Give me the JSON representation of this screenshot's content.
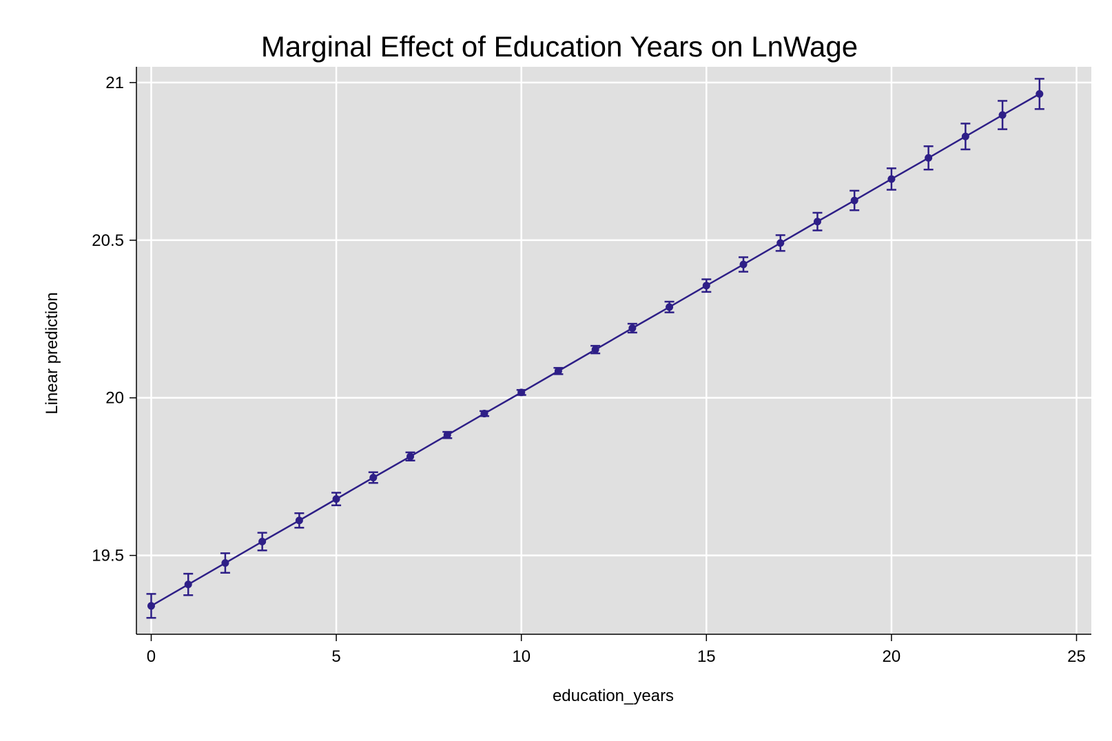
{
  "chart_data": {
    "type": "line",
    "title": "Marginal Effect of Education Years on LnWage",
    "xlabel": "education_years",
    "ylabel": "Linear prediction",
    "xlim": [
      -0.4,
      25.4
    ],
    "ylim": [
      19.25,
      21.05
    ],
    "xticks": [
      0,
      5,
      10,
      15,
      20,
      25
    ],
    "yticks": [
      19.5,
      20,
      20.5,
      21
    ],
    "ytick_labels": [
      "19.5",
      "20",
      "20.5",
      "21"
    ],
    "grid": true,
    "legend": "none",
    "colors": {
      "background": "#e0e0e0",
      "grid": "#ffffff",
      "series": "#2e1f87",
      "axes": "#000000"
    },
    "series": [
      {
        "x": [
          0,
          1,
          2,
          3,
          4,
          5,
          6,
          7,
          8,
          9,
          10,
          11,
          12,
          13,
          14,
          15,
          16,
          17,
          18,
          19,
          20,
          21,
          22,
          23,
          24
        ],
        "y": [
          19.34,
          19.408,
          19.476,
          19.544,
          19.611,
          19.679,
          19.747,
          19.814,
          19.882,
          19.95,
          20.017,
          20.085,
          20.153,
          20.221,
          20.288,
          20.356,
          20.423,
          20.491,
          20.559,
          20.626,
          20.694,
          20.761,
          20.829,
          20.897,
          20.964
        ],
        "ci_low": [
          19.302,
          19.374,
          19.445,
          19.516,
          19.588,
          19.659,
          19.73,
          19.801,
          19.872,
          19.942,
          20.009,
          20.075,
          20.141,
          20.207,
          20.271,
          20.336,
          20.4,
          20.466,
          20.531,
          20.595,
          20.66,
          20.724,
          20.788,
          20.852,
          20.916
        ],
        "ci_high": [
          19.378,
          19.442,
          19.507,
          19.572,
          19.634,
          19.699,
          19.764,
          19.827,
          19.892,
          19.958,
          20.025,
          20.095,
          20.165,
          20.235,
          20.305,
          20.376,
          20.446,
          20.516,
          20.587,
          20.657,
          20.728,
          20.798,
          20.87,
          20.942,
          21.012
        ]
      }
    ]
  }
}
